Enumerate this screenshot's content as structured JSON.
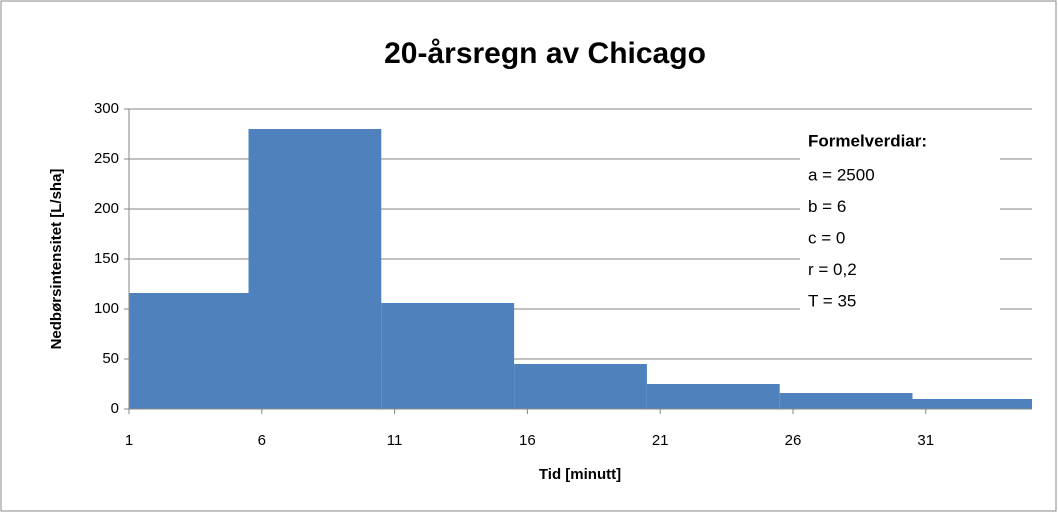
{
  "chart_data": {
    "type": "histogram",
    "title": "20-årsregn av Chicago",
    "x_label": "Tid [minutt]",
    "y_label": "Nedbørsintensitet [L/sha]",
    "bins": [
      1,
      5.5,
      10.5,
      15.5,
      20.5,
      25.5,
      30.5,
      35
    ],
    "values": [
      116,
      280,
      106,
      45,
      25,
      16,
      10
    ],
    "color": "#4f81bd",
    "xlim": [
      1,
      35
    ],
    "xticks": [
      1,
      6,
      11,
      16,
      21,
      26,
      31
    ],
    "ylim": [
      0,
      300
    ],
    "yticks": [
      0,
      50,
      100,
      150,
      200,
      250,
      300
    ],
    "grid": true,
    "annotation": {
      "title": "Formelverdiar:",
      "lines": [
        "a = 2500",
        "b = 6",
        "c = 0",
        "r = 0,2",
        "T = 35"
      ]
    }
  }
}
